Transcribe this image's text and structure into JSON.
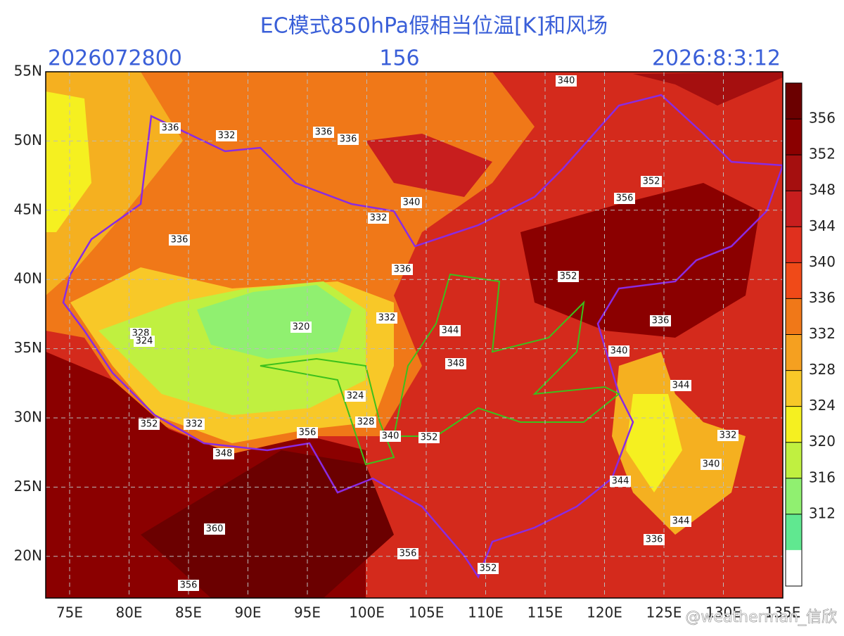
{
  "header": {
    "title": "EC模式850hPa假相当位温[K]和风场",
    "init_time": "2026072800",
    "forecast_hour": "156",
    "valid_time": "2026:8:3:12"
  },
  "lat_labels": [
    "55N",
    "50N",
    "45N",
    "40N",
    "35N",
    "30N",
    "25N",
    "20N"
  ],
  "lon_labels": [
    "75E",
    "80E",
    "85E",
    "90E",
    "95E",
    "100E",
    "105E",
    "110E",
    "115E",
    "120E",
    "125E",
    "130E",
    "135E"
  ],
  "colorbar": {
    "ticks": [
      356,
      352,
      348,
      344,
      340,
      336,
      332,
      328,
      324,
      320,
      316,
      312
    ]
  },
  "contour_labels": [
    336,
    332,
    336,
    336,
    340,
    332,
    340,
    336,
    336,
    352,
    356,
    352,
    344,
    332,
    320,
    328,
    324,
    348,
    324,
    328,
    340,
    352,
    356,
    332,
    352,
    348,
    360,
    356,
    356,
    352,
    344,
    336,
    340,
    332,
    340,
    344,
    336,
    344
  ],
  "watermark": "@weatherman_信欣"
}
